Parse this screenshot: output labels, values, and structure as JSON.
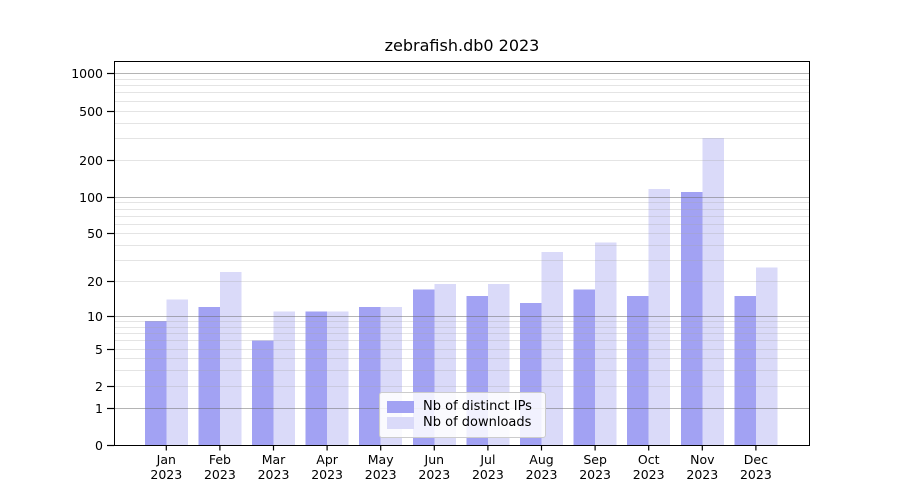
{
  "chart_data": {
    "type": "bar",
    "title": "zebrafish.db0 2023",
    "categories": [
      "Jan",
      "Feb",
      "Mar",
      "Apr",
      "May",
      "Jun",
      "Jul",
      "Aug",
      "Sep",
      "Oct",
      "Nov",
      "Dec"
    ],
    "year_label": "2023",
    "series": [
      {
        "name": "Nb of distinct IPs",
        "color": "#a2a2f3",
        "values": [
          9,
          12,
          6,
          11,
          12,
          17,
          15,
          13,
          17,
          15,
          109,
          15
        ]
      },
      {
        "name": "Nb of downloads",
        "color": "#dadaf9",
        "values": [
          14,
          24,
          11,
          11,
          12,
          19,
          19,
          35,
          42,
          116,
          300,
          26
        ]
      }
    ],
    "xlabel": "",
    "ylabel": "",
    "y_scale": "log1p",
    "ylim": [
      0,
      1000
    ],
    "y_ticks": [
      0,
      1,
      2,
      5,
      10,
      20,
      50,
      100,
      200,
      500,
      1000
    ],
    "grid": true,
    "grid_major_values": [
      1,
      10,
      100,
      1000
    ],
    "legend_position": "lower center"
  },
  "colors": {
    "major_grid": "rgba(105,105,105,0.50)",
    "minor_grid": "rgba(165,165,165,0.30)",
    "spine": "#000000",
    "text": "#000000"
  }
}
